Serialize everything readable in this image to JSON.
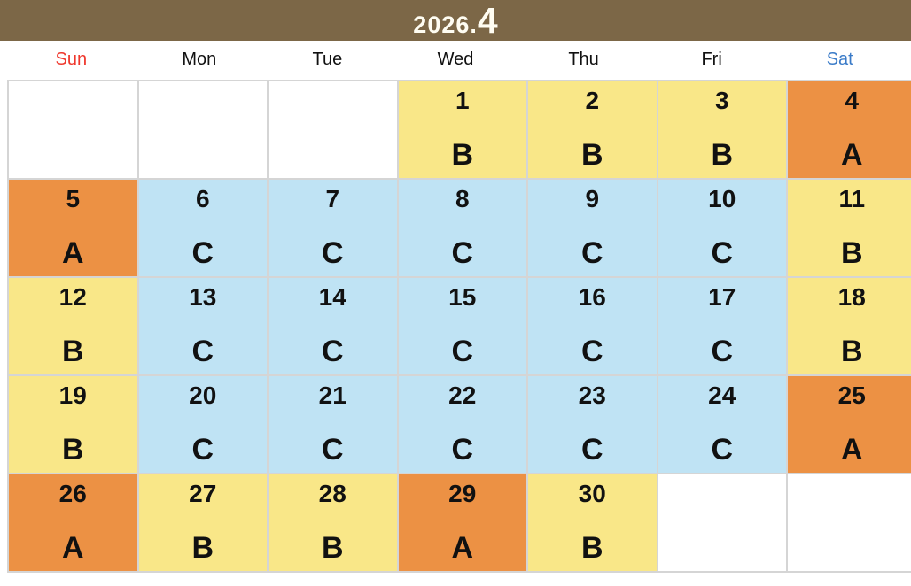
{
  "header": {
    "title_prefix": "2026.",
    "title_month": "4",
    "background_color": "#7c6747",
    "text_color": "#fffdf2"
  },
  "weekdays": [
    {
      "label": "Sun",
      "color": "#ef372c"
    },
    {
      "label": "Mon",
      "color": "#111111"
    },
    {
      "label": "Tue",
      "color": "#111111"
    },
    {
      "label": "Wed",
      "color": "#111111"
    },
    {
      "label": "Thu",
      "color": "#111111"
    },
    {
      "label": "Fri",
      "color": "#111111"
    },
    {
      "label": "Sat",
      "color": "#3a7bc8"
    }
  ],
  "shift_colors": {
    "A": "#ec9144",
    "B": "#f9e788",
    "C": "#bfe3f4",
    "empty": "#ffffff"
  },
  "grid_line_color": "#d5d5d5",
  "weeks": [
    [
      {
        "date": "",
        "shift": ""
      },
      {
        "date": "",
        "shift": ""
      },
      {
        "date": "",
        "shift": ""
      },
      {
        "date": "1",
        "shift": "B"
      },
      {
        "date": "2",
        "shift": "B"
      },
      {
        "date": "3",
        "shift": "B"
      },
      {
        "date": "4",
        "shift": "A"
      }
    ],
    [
      {
        "date": "5",
        "shift": "A"
      },
      {
        "date": "6",
        "shift": "C"
      },
      {
        "date": "7",
        "shift": "C"
      },
      {
        "date": "8",
        "shift": "C"
      },
      {
        "date": "9",
        "shift": "C"
      },
      {
        "date": "10",
        "shift": "C"
      },
      {
        "date": "11",
        "shift": "B"
      }
    ],
    [
      {
        "date": "12",
        "shift": "B"
      },
      {
        "date": "13",
        "shift": "C"
      },
      {
        "date": "14",
        "shift": "C"
      },
      {
        "date": "15",
        "shift": "C"
      },
      {
        "date": "16",
        "shift": "C"
      },
      {
        "date": "17",
        "shift": "C"
      },
      {
        "date": "18",
        "shift": "B"
      }
    ],
    [
      {
        "date": "19",
        "shift": "B"
      },
      {
        "date": "20",
        "shift": "C"
      },
      {
        "date": "21",
        "shift": "C"
      },
      {
        "date": "22",
        "shift": "C"
      },
      {
        "date": "23",
        "shift": "C"
      },
      {
        "date": "24",
        "shift": "C"
      },
      {
        "date": "25",
        "shift": "A"
      }
    ],
    [
      {
        "date": "26",
        "shift": "A"
      },
      {
        "date": "27",
        "shift": "B"
      },
      {
        "date": "28",
        "shift": "B"
      },
      {
        "date": "29",
        "shift": "A"
      },
      {
        "date": "30",
        "shift": "B"
      },
      {
        "date": "",
        "shift": ""
      },
      {
        "date": "",
        "shift": ""
      }
    ]
  ]
}
